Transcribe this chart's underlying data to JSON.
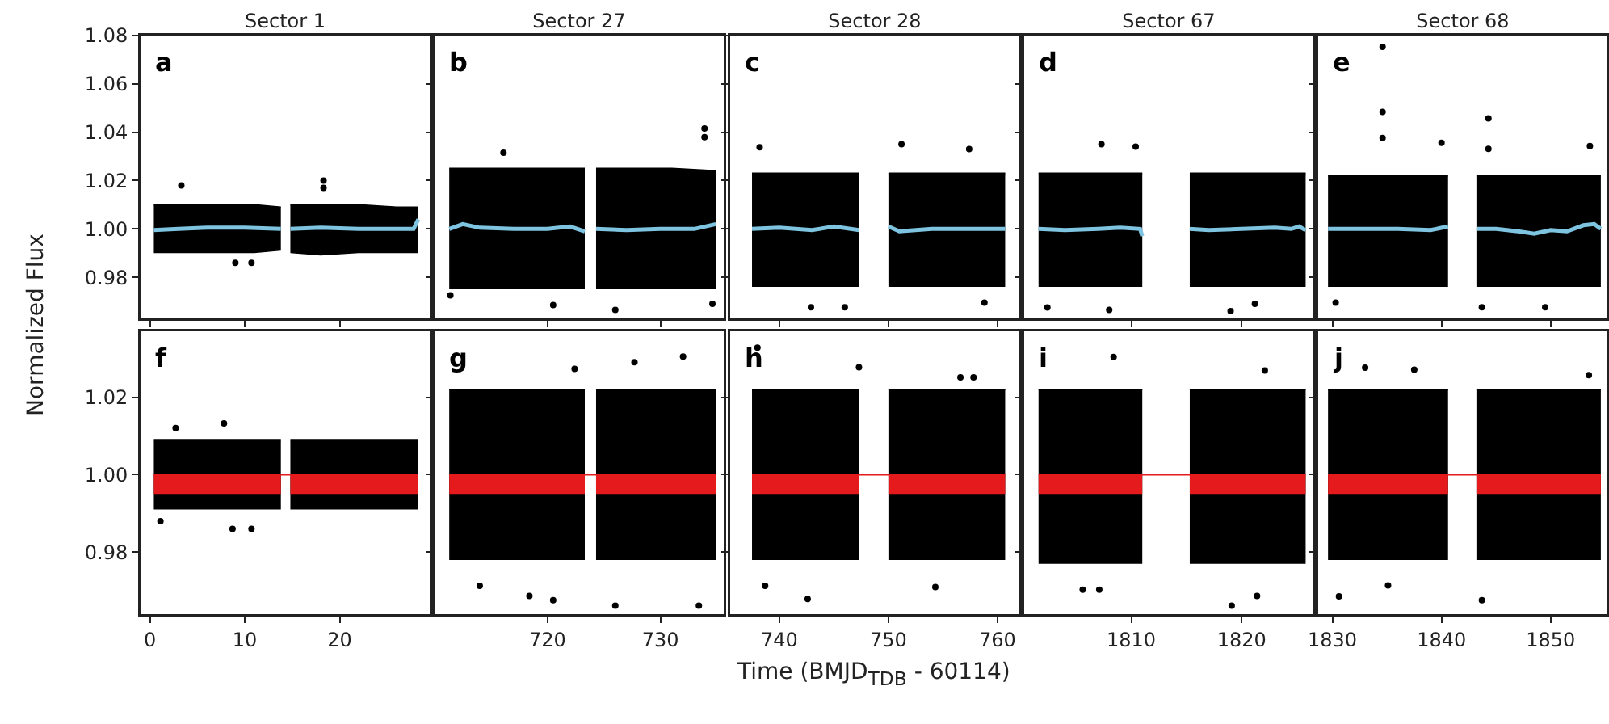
{
  "chart_data": [
    {
      "type": "scatter",
      "title": "Sector 1",
      "ylabel": "Normalized Flux",
      "annotations": [
        "a"
      ],
      "xlim": [
        -1,
        29.5
      ],
      "xticks": [
        0,
        10,
        20
      ],
      "ylim": [
        0.963,
        1.08
      ],
      "yticks": [
        0.98,
        {
          "value": 1,
          "label": "1.00"
        },
        1.02,
        1.04,
        1.06,
        1.08
      ],
      "tick_labels": "y",
      "series": [
        {
          "type": "line",
          "color": "#000000",
          "x": [
            0.4,
            3,
            7,
            11,
            13.8,
            14.3,
            14.8,
            18,
            22,
            26,
            28.3
          ],
          "values": [
            1.01,
            1.01,
            1.01,
            1.01,
            1.009,
            null,
            1.01,
            1.01,
            1.01,
            1.009,
            1.009
          ],
          "lower": [
            0.99,
            0.99,
            0.99,
            0.99,
            0.991,
            null,
            0.99,
            0.989,
            0.99,
            0.99,
            0.99
          ],
          "upper": [
            1.01,
            1.01,
            1.01,
            1.01,
            1.009,
            null,
            1.01,
            1.01,
            1.01,
            1.009,
            1.009
          ]
        },
        {
          "type": "scatter",
          "marker": "circle",
          "color": "#000000",
          "x": [
            3.3,
            18.3,
            18.3,
            9.0,
            10.7
          ],
          "values": [
            1.018,
            1.02,
            1.017,
            0.986,
            0.986
          ]
        },
        {
          "type": "line",
          "color": "#7ec4e0",
          "x": [
            0.4,
            3,
            6,
            10,
            13.8,
            14.3,
            14.8,
            18,
            22,
            26,
            27.8,
            28.3
          ],
          "values": [
            0.9995,
            1.0,
            1.0005,
            1.0005,
            1.0,
            null,
            1.0,
            1.0005,
            1.0,
            1.0,
            1.0,
            1.004
          ]
        }
      ]
    },
    {
      "type": "scatter",
      "title": "Sector 27",
      "annotations": [
        "b"
      ],
      "xlim": [
        710,
        735.6
      ],
      "xticks": [
        720,
        730
      ],
      "ylim": [
        0.963,
        1.08
      ],
      "yticks": [
        0.98,
        1.0,
        1.02,
        1.04,
        1.06,
        1.08
      ],
      "tick_labels": false,
      "series": [
        {
          "type": "line",
          "color": "#000000",
          "x": [
            711.3,
            715,
            719,
            723.3,
            723.8,
            724.3,
            728,
            731,
            734.9
          ],
          "values": [
            1.025,
            1.025,
            1.025,
            1.025,
            null,
            1.025,
            1.025,
            1.025,
            1.024
          ],
          "lower": [
            0.975,
            0.975,
            0.975,
            0.975,
            null,
            0.975,
            0.975,
            0.975,
            0.975
          ],
          "upper": [
            1.025,
            1.025,
            1.025,
            1.025,
            null,
            1.025,
            1.025,
            1.025,
            1.024
          ]
        },
        {
          "type": "scatter",
          "marker": "circle",
          "color": "#000000",
          "x": [
            733.9,
            733.9,
            716.1,
            726.0,
            734.6,
            720.5,
            711.4
          ],
          "values": [
            1.0416,
            1.038,
            1.0315,
            0.9665,
            0.969,
            0.9685,
            0.9725
          ]
        },
        {
          "type": "line",
          "color": "#7ec4e0",
          "x": [
            711.3,
            712.5,
            714,
            717,
            720,
            722,
            723.3,
            723.8,
            724.3,
            727,
            730,
            733,
            734.9
          ],
          "values": [
            1.0,
            1.002,
            1.0005,
            1.0,
            1.0,
            1.001,
            0.999,
            null,
            1.0,
            0.9995,
            1.0,
            1.0,
            1.002
          ]
        }
      ]
    },
    {
      "type": "scatter",
      "title": "Sector 28",
      "annotations": [
        "c"
      ],
      "xlim": [
        735.5,
        762
      ],
      "xticks": [
        740,
        750,
        760
      ],
      "ylim": [
        0.963,
        1.08
      ],
      "yticks": [
        0.98,
        1.0,
        1.02,
        1.04,
        1.06,
        1.08
      ],
      "tick_labels": false,
      "series": [
        {
          "type": "line",
          "color": "#000000",
          "x": [
            737.5,
            741,
            744,
            747.3,
            748.6,
            750,
            754,
            757,
            760.7
          ],
          "values": [
            1.023,
            1.023,
            1.023,
            1.023,
            null,
            1.023,
            1.023,
            1.023,
            1.023
          ],
          "lower": [
            0.976,
            0.976,
            0.976,
            0.976,
            null,
            0.976,
            0.976,
            0.976,
            0.976
          ],
          "upper": [
            1.023,
            1.023,
            1.023,
            1.023,
            null,
            1.023,
            1.023,
            1.023,
            1.023
          ]
        },
        {
          "type": "scatter",
          "marker": "circle",
          "color": "#000000",
          "x": [
            738.2,
            751.2,
            757.4,
            742.9,
            746.0,
            758.8
          ],
          "values": [
            1.0338,
            1.035,
            1.033,
            0.9676,
            0.9676,
            0.9695
          ]
        },
        {
          "type": "line",
          "color": "#7ec4e0",
          "x": [
            737.5,
            740,
            743,
            745,
            747.3,
            748.6,
            750,
            751,
            754,
            757,
            760.7
          ],
          "values": [
            1.0,
            1.0005,
            0.9995,
            1.001,
            0.9995,
            null,
            1.001,
            0.999,
            1.0,
            1.0,
            1.0
          ]
        }
      ]
    },
    {
      "type": "scatter",
      "title": "Sector 67",
      "annotations": [
        "d"
      ],
      "xlim": [
        1800.3,
        1826.5
      ],
      "xticks": [
        1810,
        1820
      ],
      "ylim": [
        0.963,
        1.08
      ],
      "yticks": [
        0.98,
        1.0,
        1.02,
        1.04,
        1.06,
        1.08
      ],
      "tick_labels": false,
      "series": [
        {
          "type": "line",
          "color": "#000000",
          "x": [
            1801.6,
            1805,
            1808,
            1811,
            1813.2,
            1815.3,
            1819,
            1822,
            1825.8
          ],
          "values": [
            1.023,
            1.023,
            1.023,
            1.023,
            null,
            1.023,
            1.023,
            1.023,
            1.023
          ],
          "lower": [
            0.976,
            0.976,
            0.976,
            0.976,
            null,
            0.976,
            0.976,
            0.976,
            0.976
          ],
          "upper": [
            1.023,
            1.023,
            1.023,
            1.023,
            null,
            1.023,
            1.023,
            1.023,
            1.023
          ]
        },
        {
          "type": "scatter",
          "marker": "circle",
          "color": "#000000",
          "x": [
            1807.3,
            1810.4,
            1802.4,
            1808.0,
            1819.0,
            1821.2
          ],
          "values": [
            1.035,
            1.034,
            0.9675,
            0.9665,
            0.966,
            0.969
          ]
        },
        {
          "type": "line",
          "color": "#7ec4e0",
          "x": [
            1801.6,
            1804,
            1807,
            1809,
            1810.8,
            1811,
            1813.2,
            1815.3,
            1817,
            1820,
            1823,
            1824.5,
            1825.2,
            1825.8
          ],
          "values": [
            1.0,
            0.9995,
            1.0,
            1.0005,
            1.0,
            0.997,
            null,
            1.0,
            0.9995,
            1.0,
            1.0005,
            1.0,
            1.001,
            0.9995
          ]
        }
      ]
    },
    {
      "type": "scatter",
      "title": "Sector 68",
      "annotations": [
        "e"
      ],
      "xlim": [
        1828.7,
        1855.2
      ],
      "xticks": [
        1830,
        1840,
        1850
      ],
      "ylim": [
        0.963,
        1.08
      ],
      "yticks": [
        0.98,
        1.0,
        1.02,
        1.04,
        1.06,
        1.08
      ],
      "tick_labels": false,
      "series": [
        {
          "type": "line",
          "color": "#000000",
          "x": [
            1829.6,
            1833,
            1837,
            1840.6,
            1841.9,
            1843.2,
            1847,
            1851,
            1854.6
          ],
          "values": [
            1.022,
            1.022,
            1.022,
            1.022,
            null,
            1.022,
            1.022,
            1.022,
            1.022
          ],
          "lower": [
            0.976,
            0.976,
            0.976,
            0.976,
            null,
            0.976,
            0.976,
            0.976,
            0.976
          ],
          "upper": [
            1.022,
            1.022,
            1.022,
            1.022,
            null,
            1.022,
            1.022,
            1.022,
            1.022
          ]
        },
        {
          "type": "scatter",
          "marker": "circle",
          "color": "#000000",
          "x": [
            1834.6,
            1834.6,
            1834.6,
            1844.3,
            1844.3,
            1840.0,
            1853.6,
            1830.3,
            1849.5,
            1843.7
          ],
          "values": [
            1.0753,
            1.0484,
            1.0376,
            1.0457,
            1.0331,
            1.0356,
            1.0343,
            0.9695,
            0.9676,
            0.9676
          ]
        },
        {
          "type": "line",
          "color": "#7ec4e0",
          "x": [
            1829.6,
            1833,
            1836,
            1839,
            1840.6,
            1841.9,
            1843.2,
            1845,
            1847,
            1848.5,
            1850,
            1851.5,
            1853,
            1854,
            1854.6
          ],
          "values": [
            1.0,
            1.0,
            1.0,
            0.9995,
            1.001,
            null,
            1.0,
            1.0,
            0.999,
            0.998,
            0.9995,
            0.999,
            1.0015,
            1.002,
            1.0
          ]
        }
      ]
    },
    {
      "type": "scatter",
      "annotations": [
        "f"
      ],
      "xlim": [
        -1,
        29.5
      ],
      "xticks": [
        0,
        10,
        20
      ],
      "ylim": [
        0.964,
        1.037
      ],
      "yticks": [
        0.98,
        {
          "value": 1,
          "label": "1.00"
        },
        1.02
      ],
      "series": [
        {
          "type": "line",
          "color": "#000000",
          "x": [
            0.4,
            4,
            8,
            13.8,
            14.3,
            14.8,
            19,
            24,
            28.3
          ],
          "values": [
            1.009,
            1.009,
            1.009,
            1.009,
            null,
            1.009,
            1.009,
            1.009,
            1.009
          ],
          "lower": [
            0.991,
            0.991,
            0.991,
            0.991,
            null,
            0.991,
            0.991,
            0.991,
            0.991
          ],
          "upper": [
            1.009,
            1.009,
            1.009,
            1.009,
            null,
            1.009,
            1.009,
            1.009,
            1.009
          ]
        },
        {
          "type": "scatter",
          "marker": "circle",
          "color": "#000000",
          "x": [
            2.7,
            7.8,
            8.7,
            10.7,
            1.1
          ],
          "values": [
            1.012,
            1.0132,
            0.986,
            0.986,
            0.988
          ]
        },
        {
          "type": "line",
          "color": "#e41a1c",
          "x": [
            0.4,
            13.8,
            14.3,
            14.8,
            28.3
          ],
          "values": [
            1,
            1,
            1,
            1,
            1
          ],
          "lower": [
            0.995,
            0.995,
            null,
            0.995,
            0.995
          ],
          "upper": [
            1,
            1,
            null,
            1,
            1
          ]
        }
      ]
    },
    {
      "type": "scatter",
      "annotations": [
        "g"
      ],
      "xlim": [
        710,
        735.6
      ],
      "xticks": [
        720,
        730
      ],
      "ylim": [
        0.964,
        1.037
      ],
      "yticks": [
        0.98,
        1.0,
        1.02
      ],
      "tick_labels": "x",
      "series": [
        {
          "type": "line",
          "color": "#000000",
          "x": [
            711.3,
            715,
            719,
            723.3,
            723.8,
            724.3,
            728,
            731,
            734.9
          ],
          "values": [
            1.022,
            1.022,
            1.022,
            1.022,
            null,
            1.022,
            1.022,
            1.022,
            1.022
          ],
          "lower": [
            0.978,
            0.978,
            0.978,
            0.978,
            null,
            0.978,
            0.978,
            0.978,
            0.978
          ],
          "upper": [
            1.022,
            1.022,
            1.022,
            1.022,
            null,
            1.022,
            1.022,
            1.022,
            1.022
          ]
        },
        {
          "type": "scatter",
          "marker": "circle",
          "color": "#000000",
          "x": [
            727.7,
            732.0,
            722.4,
            714.0,
            720.5,
            726.0,
            733.4,
            718.4
          ],
          "values": [
            1.029,
            1.0305,
            1.0273,
            0.9713,
            0.9676,
            0.9662,
            0.9662,
            0.9687
          ]
        },
        {
          "type": "line",
          "color": "#e41a1c",
          "x": [
            711.3,
            723.3,
            723.8,
            724.3,
            734.9
          ],
          "values": [
            1,
            1,
            1,
            1,
            1
          ],
          "lower": [
            0.995,
            0.995,
            null,
            0.995,
            0.995
          ],
          "upper": [
            1,
            1,
            null,
            1,
            1
          ]
        }
      ]
    },
    {
      "type": "scatter",
      "xlabel": "Time (BMJD$_{TDB}$ - 60114)",
      "annotations": [
        "h"
      ],
      "xlim": [
        735.5,
        762
      ],
      "xticks": [
        740,
        750,
        760
      ],
      "ylim": [
        0.964,
        1.037
      ],
      "yticks": [
        0.98,
        1.0,
        1.02
      ],
      "tick_labels": "x",
      "series": [
        {
          "type": "line",
          "color": "#000000",
          "x": [
            737.5,
            741,
            744,
            747.3,
            748.6,
            750,
            754,
            757,
            760.7
          ],
          "values": [
            1.022,
            1.022,
            1.022,
            1.022,
            null,
            1.022,
            1.022,
            1.022,
            1.022
          ],
          "lower": [
            0.978,
            0.978,
            0.978,
            0.978,
            null,
            0.978,
            0.978,
            0.978,
            0.978
          ],
          "upper": [
            1.022,
            1.022,
            1.022,
            1.022,
            null,
            1.022,
            1.022,
            1.022,
            1.022
          ]
        },
        {
          "type": "scatter",
          "marker": "circle",
          "color": "#000000",
          "x": [
            738.0,
            747.3,
            756.6,
            757.8,
            742.6,
            754.3,
            738.7
          ],
          "values": [
            1.0328,
            1.0277,
            1.0251,
            1.0251,
            0.9679,
            0.971,
            0.9713
          ]
        },
        {
          "type": "line",
          "color": "#e41a1c",
          "x": [
            737.5,
            747.3,
            748.6,
            750,
            760.7
          ],
          "values": [
            1,
            1,
            1,
            1,
            1
          ],
          "lower": [
            0.995,
            0.995,
            null,
            0.995,
            0.995
          ],
          "upper": [
            1,
            1,
            null,
            1,
            1
          ]
        }
      ]
    },
    {
      "type": "scatter",
      "annotations": [
        "i"
      ],
      "xlim": [
        1800.3,
        1826.5
      ],
      "xticks": [
        1810,
        1820
      ],
      "ylim": [
        0.964,
        1.037
      ],
      "yticks": [
        0.98,
        1.0,
        1.02
      ],
      "tick_labels": "x",
      "series": [
        {
          "type": "line",
          "color": "#000000",
          "x": [
            1801.6,
            1805,
            1808,
            1811,
            1813.2,
            1815.3,
            1819,
            1822,
            1825.8
          ],
          "values": [
            1.022,
            1.022,
            1.022,
            1.022,
            null,
            1.022,
            1.022,
            1.022,
            1.022
          ],
          "lower": [
            0.977,
            0.977,
            0.977,
            0.977,
            null,
            0.977,
            0.977,
            0.977,
            0.977
          ],
          "upper": [
            1.022,
            1.022,
            1.022,
            1.022,
            null,
            1.022,
            1.022,
            1.022,
            1.022
          ]
        },
        {
          "type": "scatter",
          "marker": "circle",
          "color": "#000000",
          "x": [
            1808.4,
            1822.1,
            1819.1,
            1821.4,
            1805.6,
            1807.1
          ],
          "values": [
            1.0304,
            1.0269,
            0.9662,
            0.9687,
            0.9703,
            0.9703
          ]
        },
        {
          "type": "line",
          "color": "#e41a1c",
          "x": [
            1801.6,
            1811,
            1813.2,
            1815.3,
            1825.8
          ],
          "values": [
            1,
            1,
            1,
            1,
            1
          ],
          "lower": [
            0.995,
            0.995,
            null,
            0.995,
            0.995
          ],
          "upper": [
            1,
            1,
            null,
            1,
            1
          ]
        }
      ]
    },
    {
      "type": "scatter",
      "annotations": [
        "j"
      ],
      "xlim": [
        1828.7,
        1855.2
      ],
      "xticks": [
        1830,
        1840,
        1850
      ],
      "ylim": [
        0.964,
        1.037
      ],
      "yticks": [
        0.98,
        1.0,
        1.02
      ],
      "tick_labels": "x",
      "series": [
        {
          "type": "line",
          "color": "#000000",
          "x": [
            1829.6,
            1833,
            1837,
            1840.6,
            1841.9,
            1843.2,
            1847,
            1851,
            1854.6
          ],
          "values": [
            1.022,
            1.022,
            1.022,
            1.022,
            null,
            1.022,
            1.022,
            1.022,
            1.022
          ],
          "lower": [
            0.978,
            0.978,
            0.978,
            0.978,
            null,
            0.978,
            0.978,
            0.978,
            0.978
          ],
          "upper": [
            1.022,
            1.022,
            1.022,
            1.022,
            null,
            1.022,
            1.022,
            1.022,
            1.022
          ]
        },
        {
          "type": "scatter",
          "marker": "circle",
          "color": "#000000",
          "x": [
            1833.0,
            1837.5,
            1853.5,
            1830.6,
            1835.1,
            1843.7
          ],
          "values": [
            1.0276,
            1.0271,
            1.0257,
            0.9686,
            0.9714,
            0.9676
          ]
        },
        {
          "type": "line",
          "color": "#e41a1c",
          "x": [
            1829.6,
            1840.6,
            1841.9,
            1843.2,
            1854.6
          ],
          "values": [
            1,
            1,
            1,
            1,
            1
          ],
          "lower": [
            0.995,
            0.995,
            null,
            0.995,
            0.995
          ],
          "upper": [
            1,
            1,
            null,
            1,
            1
          ]
        }
      ]
    }
  ]
}
